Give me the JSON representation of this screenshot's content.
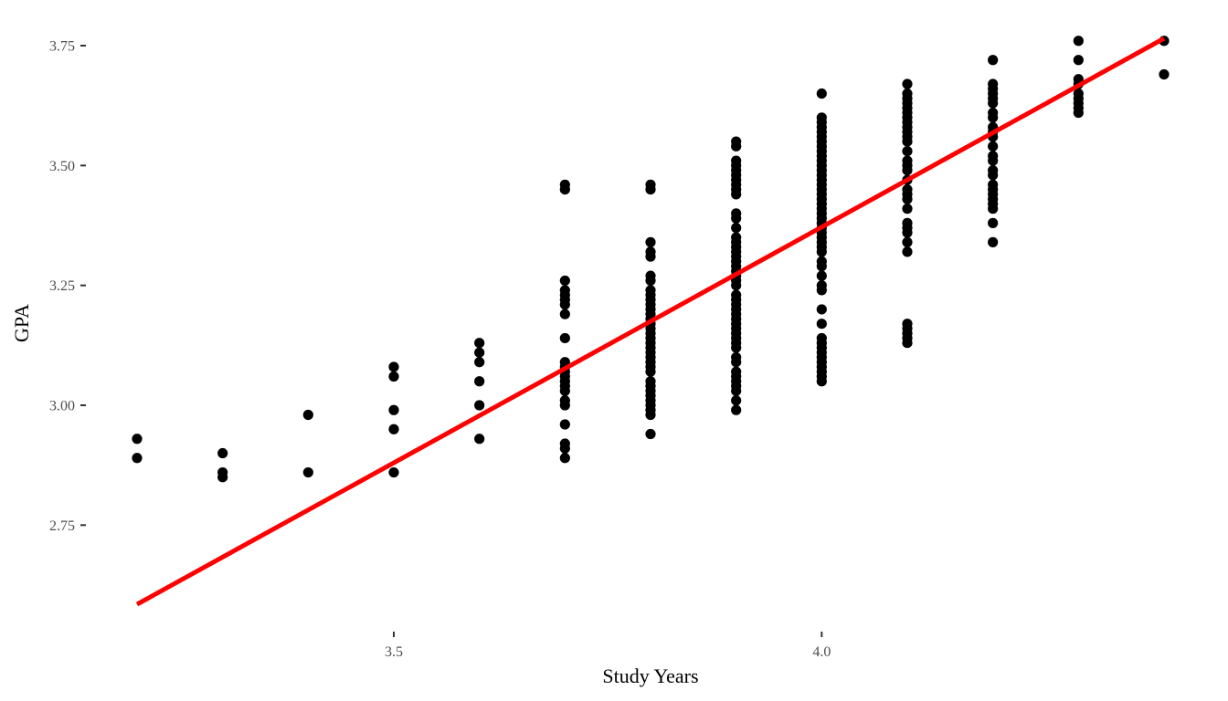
{
  "chart_data": {
    "type": "scatter",
    "title": "",
    "xlabel": "Study Years",
    "ylabel": "GPA",
    "xlim": [
      3.15,
      4.4
    ],
    "ylim": [
      2.53,
      3.81
    ],
    "grid": false,
    "x_ticks": [
      {
        "value": 3.5,
        "label": "3.5"
      },
      {
        "value": 4.0,
        "label": "4.0"
      }
    ],
    "y_ticks": [
      {
        "value": 2.75,
        "label": "2.75"
      },
      {
        "value": 3.0,
        "label": "3.00"
      },
      {
        "value": 3.25,
        "label": "3.25"
      },
      {
        "value": 3.5,
        "label": "3.50"
      },
      {
        "value": 3.75,
        "label": "3.75"
      }
    ],
    "points_color": "#000000",
    "points": [
      {
        "x": 3.2,
        "y": [
          2.89,
          2.93
        ]
      },
      {
        "x": 3.3,
        "y": [
          2.85,
          2.86,
          2.9
        ]
      },
      {
        "x": 3.4,
        "y": [
          2.86,
          2.98
        ]
      },
      {
        "x": 3.5,
        "y": [
          2.86,
          2.95,
          2.99,
          3.06,
          3.08
        ]
      },
      {
        "x": 3.6,
        "y": [
          2.93,
          3.0,
          3.05,
          3.09,
          3.11,
          3.13
        ]
      },
      {
        "x": 3.7,
        "y": [
          2.89,
          2.91,
          2.92,
          2.96,
          3.0,
          3.01,
          3.03,
          3.04,
          3.05,
          3.06,
          3.07,
          3.08,
          3.09,
          3.14,
          3.19,
          3.21,
          3.22,
          3.23,
          3.24,
          3.26,
          3.45,
          3.46
        ]
      },
      {
        "x": 3.8,
        "y": [
          2.94,
          2.98,
          2.99,
          3.0,
          3.01,
          3.02,
          3.03,
          3.04,
          3.05,
          3.07,
          3.08,
          3.09,
          3.1,
          3.11,
          3.12,
          3.13,
          3.14,
          3.15,
          3.16,
          3.17,
          3.18,
          3.19,
          3.2,
          3.21,
          3.22,
          3.23,
          3.24,
          3.26,
          3.27,
          3.31,
          3.32,
          3.34,
          3.45,
          3.46
        ]
      },
      {
        "x": 3.9,
        "y": [
          2.99,
          3.01,
          3.03,
          3.04,
          3.05,
          3.06,
          3.07,
          3.09,
          3.1,
          3.12,
          3.13,
          3.14,
          3.15,
          3.16,
          3.17,
          3.18,
          3.19,
          3.2,
          3.21,
          3.22,
          3.23,
          3.25,
          3.26,
          3.27,
          3.28,
          3.29,
          3.3,
          3.31,
          3.32,
          3.33,
          3.34,
          3.35,
          3.37,
          3.39,
          3.4,
          3.44,
          3.45,
          3.46,
          3.47,
          3.48,
          3.49,
          3.5,
          3.51,
          3.54,
          3.55
        ]
      },
      {
        "x": 4.0,
        "y": [
          3.05,
          3.06,
          3.07,
          3.08,
          3.09,
          3.1,
          3.11,
          3.12,
          3.13,
          3.14,
          3.17,
          3.2,
          3.24,
          3.25,
          3.27,
          3.29,
          3.3,
          3.32,
          3.33,
          3.34,
          3.35,
          3.36,
          3.37,
          3.38,
          3.39,
          3.4,
          3.41,
          3.42,
          3.43,
          3.44,
          3.45,
          3.46,
          3.47,
          3.48,
          3.49,
          3.5,
          3.51,
          3.52,
          3.53,
          3.54,
          3.55,
          3.56,
          3.57,
          3.58,
          3.59,
          3.6,
          3.65
        ]
      },
      {
        "x": 4.1,
        "y": [
          3.13,
          3.14,
          3.15,
          3.16,
          3.17,
          3.32,
          3.34,
          3.36,
          3.37,
          3.38,
          3.41,
          3.43,
          3.44,
          3.45,
          3.47,
          3.49,
          3.5,
          3.51,
          3.53,
          3.55,
          3.56,
          3.57,
          3.58,
          3.59,
          3.6,
          3.61,
          3.62,
          3.63,
          3.64,
          3.65,
          3.67
        ]
      },
      {
        "x": 4.2,
        "y": [
          3.34,
          3.38,
          3.41,
          3.42,
          3.43,
          3.44,
          3.45,
          3.46,
          3.48,
          3.49,
          3.51,
          3.52,
          3.54,
          3.56,
          3.57,
          3.58,
          3.6,
          3.61,
          3.63,
          3.64,
          3.65,
          3.66,
          3.67,
          3.72
        ]
      },
      {
        "x": 4.3,
        "y": [
          3.61,
          3.62,
          3.63,
          3.64,
          3.65,
          3.67,
          3.68,
          3.72,
          3.76
        ]
      },
      {
        "x": 4.4,
        "y": [
          3.69,
          3.76
        ]
      }
    ],
    "fit_line": {
      "color": "#ff0000",
      "x": [
        3.2,
        4.4
      ],
      "y": [
        2.585,
        3.765
      ]
    }
  }
}
